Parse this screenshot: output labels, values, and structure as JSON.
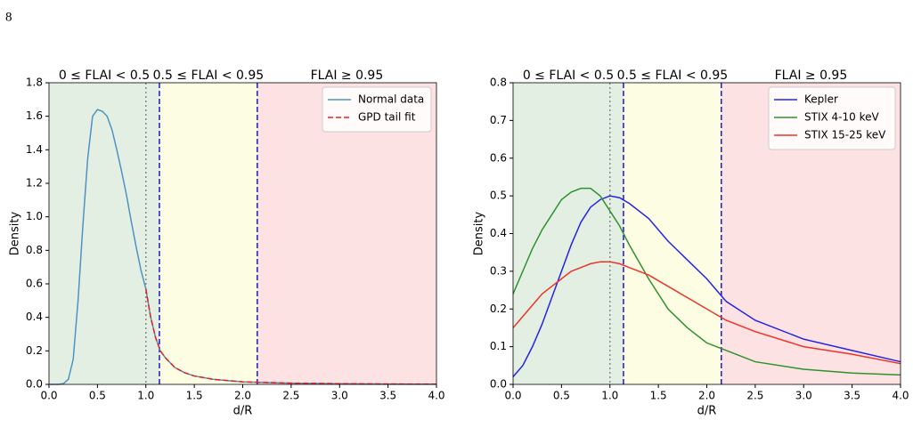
{
  "page_number": "8",
  "chart_data": [
    {
      "type": "line",
      "xlabel": "d/R",
      "ylabel": "Density",
      "x": [
        0,
        0.1,
        0.15,
        0.2,
        0.25,
        0.3,
        0.35,
        0.4,
        0.45,
        0.5,
        0.55,
        0.6,
        0.65,
        0.7,
        0.75,
        0.8,
        0.85,
        0.9,
        0.95,
        1.0,
        1.05,
        1.1,
        1.15,
        1.2,
        1.3,
        1.4,
        1.5,
        1.7,
        2.0,
        2.5,
        3.0,
        3.5,
        4.0
      ],
      "series": [
        {
          "name": "Normal data",
          "color": "#4d93c4",
          "style": "solid",
          "values": [
            0,
            0,
            0.005,
            0.03,
            0.15,
            0.5,
            0.95,
            1.35,
            1.6,
            1.64,
            1.63,
            1.6,
            1.52,
            1.4,
            1.27,
            1.13,
            0.97,
            0.82,
            0.68,
            0.57,
            0.4,
            0.28,
            0.2,
            0.16,
            0.1,
            0.07,
            0.05,
            0.03,
            0.015,
            0.007,
            0.004,
            0.002,
            0.001
          ]
        },
        {
          "name": "GPD tail fit",
          "color": "#e8211f",
          "style": "dashed",
          "values": [
            null,
            null,
            null,
            null,
            null,
            null,
            null,
            null,
            null,
            null,
            null,
            null,
            null,
            null,
            null,
            null,
            null,
            null,
            null,
            0.57,
            0.4,
            0.28,
            0.2,
            0.16,
            0.1,
            0.07,
            0.05,
            0.03,
            0.015,
            0.007,
            0.004,
            0.002,
            0.001
          ]
        }
      ],
      "xlim": [
        0,
        4
      ],
      "ylim": [
        0,
        1.8
      ],
      "xticks": [
        {
          "value": 0,
          "label": "0.0"
        },
        0.5,
        {
          "value": 1,
          "label": "1.0"
        },
        1.5,
        {
          "value": 2,
          "label": "2.0"
        },
        2.5,
        {
          "value": 3,
          "label": "3.0"
        },
        3.5,
        {
          "value": 4,
          "label": "4.0"
        }
      ],
      "yticks": [
        {
          "value": 0,
          "label": "0.0"
        },
        0.2,
        0.4,
        0.6,
        0.8,
        {
          "value": 1,
          "label": "1.0"
        },
        1.2,
        1.4,
        1.6,
        1.8
      ],
      "regions": [
        {
          "label": "0 ≤ FLAI < 0.5",
          "from": 0,
          "to": 1.14,
          "color": "#e4efe3"
        },
        {
          "label": "0.5 ≤ FLAI < 0.95",
          "from": 1.14,
          "to": 2.15,
          "color": "#fdfde3"
        },
        {
          "label": "FLAI ≥ 0.95",
          "from": 2.15,
          "to": 4,
          "color": "#fde2e3"
        }
      ],
      "vlines": [
        {
          "x": 1.0,
          "style": "dotted",
          "color": "#888888"
        },
        {
          "x": 1.14,
          "style": "dashed",
          "color": "#1a1acc"
        },
        {
          "x": 2.15,
          "style": "dashed",
          "color": "#1a1acc"
        }
      ],
      "legend": "upper right"
    },
    {
      "type": "line",
      "xlabel": "d/R",
      "ylabel": "Density",
      "x": [
        0,
        0.1,
        0.2,
        0.3,
        0.4,
        0.5,
        0.6,
        0.7,
        0.8,
        0.9,
        1.0,
        1.1,
        1.2,
        1.4,
        1.6,
        1.8,
        2.0,
        2.2,
        2.5,
        3.0,
        3.5,
        4.0
      ],
      "series": [
        {
          "name": "Kepler",
          "color": "#2424e8",
          "style": "solid",
          "values": [
            0.02,
            0.05,
            0.1,
            0.16,
            0.23,
            0.3,
            0.37,
            0.43,
            0.47,
            0.49,
            0.5,
            0.495,
            0.48,
            0.44,
            0.38,
            0.33,
            0.28,
            0.22,
            0.17,
            0.12,
            0.09,
            0.06
          ]
        },
        {
          "name": "STIX 4-10 keV",
          "color": "#2e922e",
          "style": "solid",
          "values": [
            0.24,
            0.3,
            0.36,
            0.41,
            0.45,
            0.49,
            0.51,
            0.52,
            0.52,
            0.5,
            0.46,
            0.42,
            0.37,
            0.28,
            0.2,
            0.15,
            0.11,
            0.09,
            0.06,
            0.04,
            0.03,
            0.025
          ]
        },
        {
          "name": "STIX 15-25 keV",
          "color": "#ee3329",
          "style": "solid",
          "values": [
            0.15,
            0.18,
            0.21,
            0.24,
            0.26,
            0.28,
            0.3,
            0.31,
            0.32,
            0.325,
            0.325,
            0.32,
            0.31,
            0.29,
            0.26,
            0.23,
            0.2,
            0.17,
            0.14,
            0.1,
            0.08,
            0.055
          ]
        }
      ],
      "xlim": [
        0,
        4
      ],
      "ylim": [
        0,
        0.8
      ],
      "xticks": [
        {
          "value": 0,
          "label": "0.0"
        },
        0.5,
        {
          "value": 1,
          "label": "1.0"
        },
        1.5,
        {
          "value": 2,
          "label": "2.0"
        },
        2.5,
        {
          "value": 3,
          "label": "3.0"
        },
        3.5,
        {
          "value": 4,
          "label": "4.0"
        }
      ],
      "yticks": [
        {
          "value": 0,
          "label": "0.0"
        },
        0.1,
        0.2,
        0.3,
        0.4,
        0.5,
        0.6,
        0.7,
        0.8
      ],
      "regions": [
        {
          "label": "0 ≤ FLAI < 0.5",
          "from": 0,
          "to": 1.14,
          "color": "#e4efe3"
        },
        {
          "label": "0.5 ≤ FLAI < 0.95",
          "from": 1.14,
          "to": 2.15,
          "color": "#fdfde3"
        },
        {
          "label": "FLAI ≥ 0.95",
          "from": 2.15,
          "to": 4,
          "color": "#fde2e3"
        }
      ],
      "vlines": [
        {
          "x": 1.0,
          "style": "dotted",
          "color": "#888888"
        },
        {
          "x": 1.14,
          "style": "dashed",
          "color": "#1a1acc"
        },
        {
          "x": 2.15,
          "style": "dashed",
          "color": "#1a1acc"
        }
      ],
      "legend": "upper right"
    }
  ]
}
